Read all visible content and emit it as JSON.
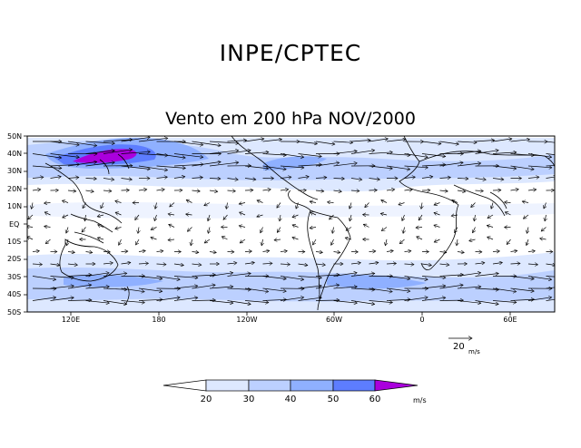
{
  "header": {
    "title": "INPE/CPTEC",
    "subtitle": "Vento em 200 hPa NOV/2000"
  },
  "map": {
    "lat_labels": [
      "50N",
      "40N",
      "30N",
      "20N",
      "10N",
      "EQ",
      "10S",
      "20S",
      "30S",
      "40S",
      "50S"
    ],
    "lon_labels": [
      "120E",
      "180",
      "120W",
      "60W",
      "0",
      "60E"
    ],
    "colors": {
      "bg": "#ffffff",
      "land_line": "#000000"
    }
  },
  "reference_vector": {
    "value": "20",
    "unit": "m/s"
  },
  "colorbar": {
    "ticks": [
      "20",
      "30",
      "40",
      "50",
      "60"
    ],
    "unit": "m/s",
    "colors": [
      "#ffffff",
      "#dde8ff",
      "#bcd0ff",
      "#8fb0ff",
      "#5d7dff",
      "#aa00dd"
    ]
  }
}
